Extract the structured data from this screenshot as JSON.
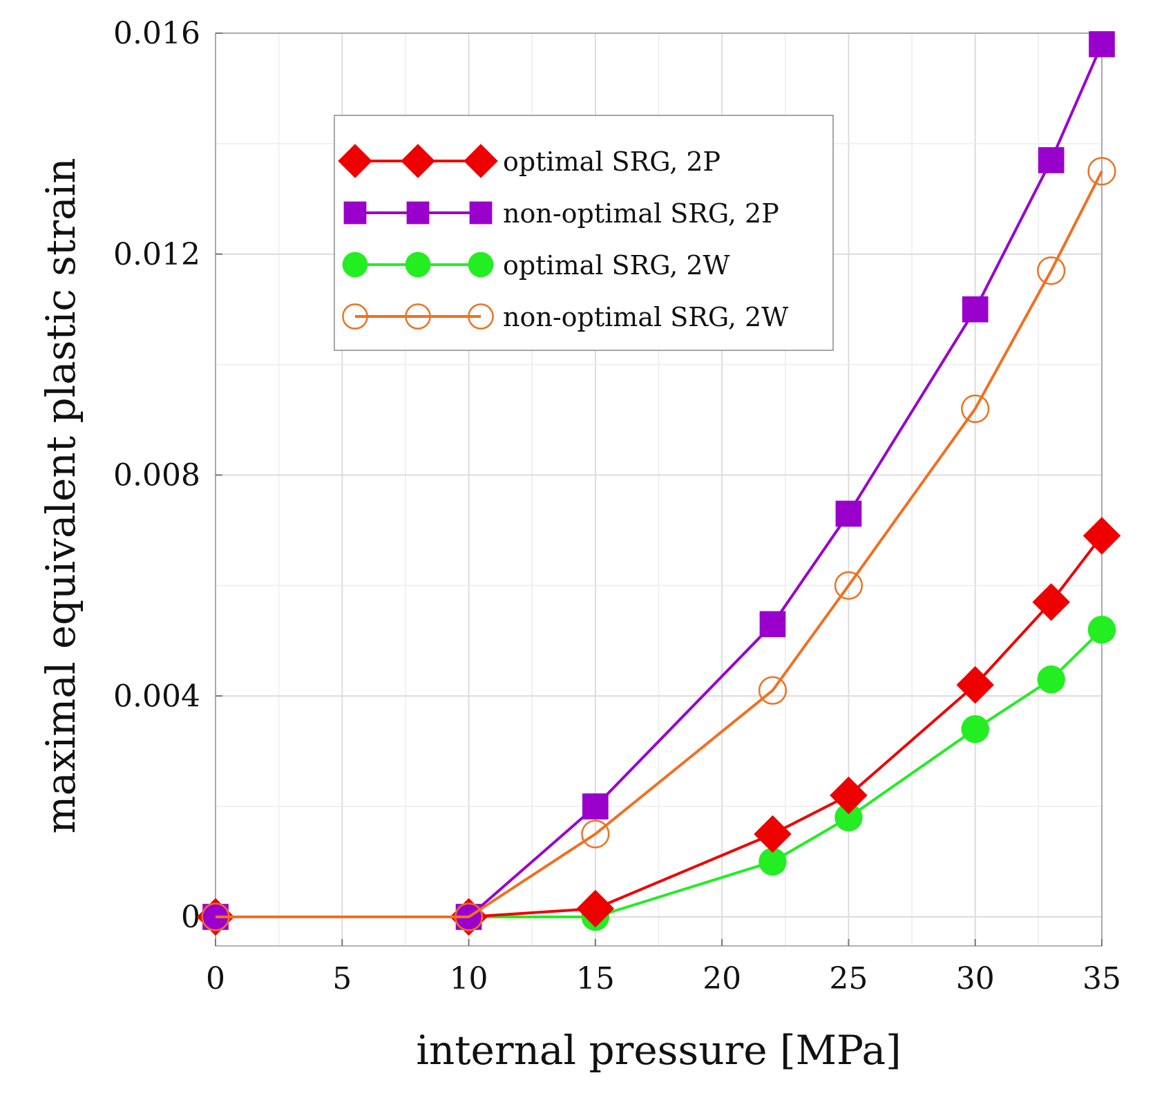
{
  "chart_data": {
    "type": "line",
    "title": "",
    "xlabel": "internal pressure [MPa]",
    "ylabel": "maximal equivalent plastic strain",
    "xlim": [
      0,
      35
    ],
    "ylim": [
      0,
      0.016
    ],
    "xticks": [
      0,
      5,
      10,
      15,
      20,
      25,
      30,
      35
    ],
    "xtick_labels": [
      "0",
      "5",
      "10",
      "15",
      "20",
      "25",
      "30",
      "35"
    ],
    "yticks": [
      0,
      0.004,
      0.008,
      0.012,
      0.016
    ],
    "ytick_labels": [
      "0",
      "0.004",
      "0.008",
      "0.012",
      "0.016"
    ],
    "grid": true,
    "legend_position": "top-left",
    "series": [
      {
        "name": "optimal SRG, 2P",
        "color": "#ee0000",
        "marker": "diamond",
        "x": [
          0,
          10,
          15,
          22,
          25,
          30,
          33,
          35
        ],
        "values": [
          0,
          0,
          0.00015,
          0.0015,
          0.0022,
          0.0042,
          0.0057,
          0.0069
        ]
      },
      {
        "name": "non-optimal SRG, 2P",
        "color": "#9900cc",
        "marker": "square",
        "x": [
          0,
          10,
          15,
          22,
          25,
          30,
          33,
          35
        ],
        "values": [
          0,
          0,
          0.002,
          0.0053,
          0.0073,
          0.011,
          0.0137,
          0.0158
        ]
      },
      {
        "name": "optimal SRG, 2W",
        "color": "#22ee22",
        "marker": "circle",
        "x": [
          0,
          10,
          15,
          22,
          25,
          30,
          33,
          35
        ],
        "values": [
          0,
          0,
          0,
          0.001,
          0.0018,
          0.0034,
          0.0043,
          0.0052
        ]
      },
      {
        "name": "non-optimal SRG, 2W",
        "color": "#f07020",
        "marker": "open-circle",
        "x": [
          0,
          10,
          15,
          22,
          25,
          30,
          33,
          35
        ],
        "values": [
          0,
          0,
          0.0015,
          0.0041,
          0.006,
          0.0092,
          0.0117,
          0.0135
        ]
      }
    ]
  }
}
